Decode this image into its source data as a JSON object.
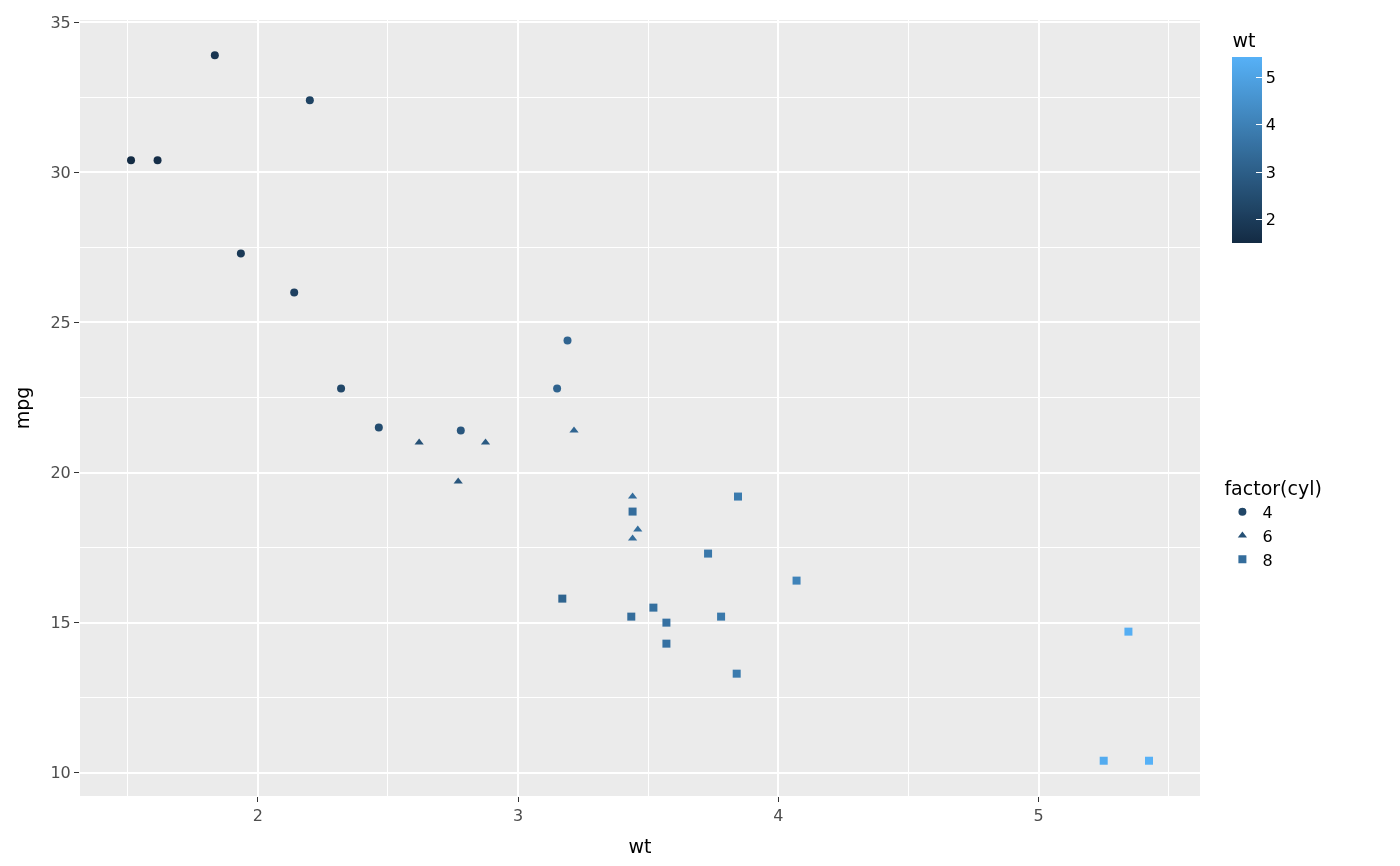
{
  "chart_data": {
    "type": "scatter",
    "xlabel": "wt",
    "ylabel": "mpg",
    "clabel": "wt",
    "legend_title": "factor(cyl)",
    "xlim": [
      1.317,
      5.62
    ],
    "ylim": [
      9.225,
      35.075
    ],
    "xticks": [
      2,
      3,
      4,
      5
    ],
    "yticks": [
      10,
      15,
      20,
      25,
      30,
      35
    ],
    "clim": [
      1.513,
      5.424
    ],
    "cticks": [
      2,
      3,
      4,
      5
    ],
    "grid": true,
    "legend": "right",
    "series": [
      {
        "name": "4",
        "marker": "circle",
        "x": [
          2.32,
          3.19,
          3.15,
          2.2,
          1.615,
          1.835,
          2.465,
          1.935,
          2.14,
          1.513,
          2.78
        ],
        "values": [
          22.8,
          24.4,
          22.8,
          32.4,
          30.4,
          33.9,
          21.5,
          27.3,
          26.0,
          30.4,
          21.4
        ],
        "cvalues": [
          2.32,
          3.19,
          3.15,
          2.2,
          1.615,
          1.835,
          2.465,
          1.935,
          2.14,
          1.513,
          2.78
        ],
        "colors": [
          "#214768",
          "#306490",
          "#2f638e",
          "#1f4363",
          "#152e48",
          "#193652",
          "#234c6f",
          "#1a3956",
          "#1e4060",
          "#132b43",
          "#29567d"
        ]
      },
      {
        "name": "6",
        "marker": "triangle",
        "x": [
          2.62,
          2.875,
          3.215,
          3.46,
          3.44,
          3.44,
          2.77
        ],
        "values": [
          21.0,
          21.0,
          21.4,
          18.1,
          19.2,
          17.8,
          19.7
        ],
        "cvalues": [
          2.62,
          2.875,
          3.215,
          3.46,
          3.44,
          3.44,
          2.77
        ],
        "colors": [
          "#265176",
          "#2a5a82",
          "#306591",
          "#346e9d",
          "#346d9c",
          "#346d9c",
          "#29567d"
        ]
      },
      {
        "name": "8",
        "marker": "square",
        "x": [
          3.44,
          3.57,
          4.07,
          3.73,
          3.78,
          5.25,
          5.424,
          5.345,
          3.52,
          3.435,
          3.84,
          3.845,
          3.17,
          3.57
        ],
        "values": [
          18.7,
          14.3,
          16.4,
          17.3,
          15.2,
          10.4,
          10.4,
          14.7,
          15.5,
          15.2,
          13.3,
          19.2,
          15.8,
          15.0
        ],
        "cvalues": [
          3.44,
          3.57,
          4.07,
          3.73,
          3.78,
          5.25,
          5.424,
          5.345,
          3.52,
          3.435,
          3.84,
          3.845,
          3.17,
          3.57
        ],
        "colors": [
          "#346d9c",
          "#3671a2",
          "#3f83b9",
          "#3977a9",
          "#3a79ab",
          "#53abef",
          "#56b1f7",
          "#55aef3",
          "#35709f",
          "#346d9b",
          "#3b7bae",
          "#3b7bae",
          "#2f648f",
          "#3671a2"
        ]
      }
    ]
  }
}
